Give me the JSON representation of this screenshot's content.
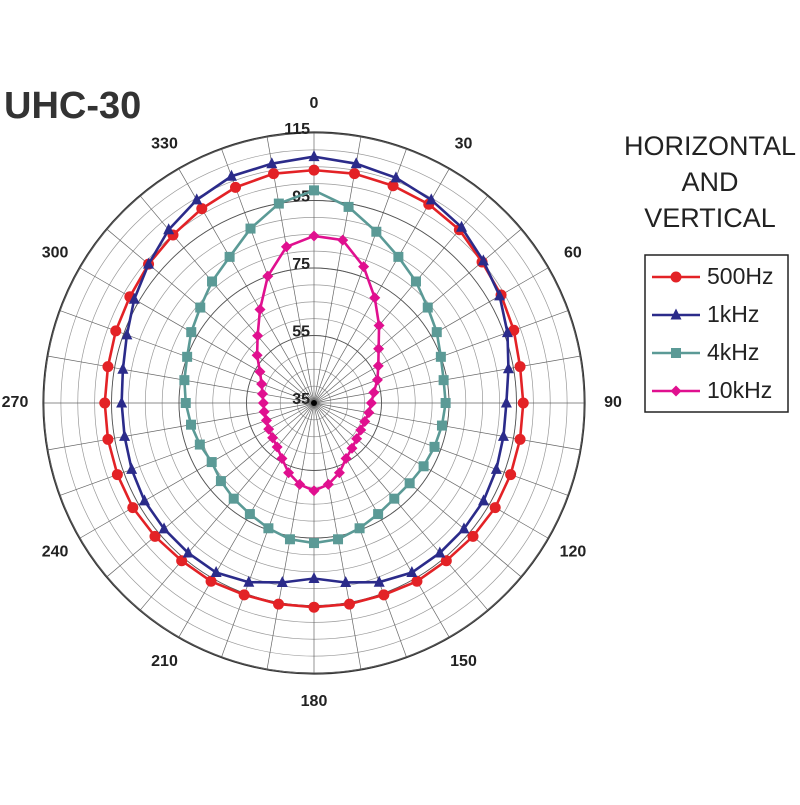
{
  "chart_data": {
    "type": "polar",
    "title": "UHC-30",
    "annotation": [
      "HORIZONTAL",
      "AND",
      "VERTICAL"
    ],
    "theta": [
      0,
      10,
      20,
      30,
      40,
      50,
      60,
      70,
      80,
      90,
      100,
      110,
      120,
      130,
      140,
      150,
      160,
      170,
      180,
      190,
      200,
      210,
      220,
      230,
      240,
      250,
      260,
      270,
      280,
      290,
      300,
      310,
      320,
      330,
      340,
      350
    ],
    "thetaticks": [
      0,
      30,
      60,
      90,
      120,
      150,
      180,
      210,
      240,
      270,
      300,
      330
    ],
    "rlim": [
      35,
      115
    ],
    "rticks": [
      35,
      55,
      75,
      95,
      115
    ],
    "rminor": 5,
    "grid": true,
    "series": [
      {
        "name": "500Hz",
        "color": "#e32226",
        "marker": "circle",
        "values": [
          104,
          104,
          103.5,
          103,
          102,
          100,
          99,
          98,
          97,
          97,
          97,
          97,
          97,
          96.5,
          96,
          96,
          95.5,
          95.5,
          95.5,
          95.5,
          95.5,
          96,
          96,
          96.5,
          97,
          97,
          97,
          97,
          97,
          97.5,
          98,
          99,
          100,
          101.5,
          103,
          104
        ]
      },
      {
        "name": "1kHz",
        "color": "#2b2b8a",
        "marker": "triangle",
        "values": [
          108,
          107,
          106,
          104.5,
          103,
          100.5,
          98.5,
          96,
          93.5,
          92,
          92,
          92.5,
          93,
          93,
          93,
          93,
          91.5,
          89,
          87,
          89,
          91.5,
          93,
          93,
          93,
          93,
          92.5,
          92,
          92,
          92.5,
          94,
          96.5,
          99,
          102,
          104.5,
          106.5,
          107
        ]
      },
      {
        "name": "4kHz",
        "color": "#5b9a96",
        "marker": "square",
        "values": [
          98,
          94,
          89,
          85,
          82,
          79,
          77,
          75,
          74,
          74,
          73.5,
          73,
          72.5,
          72,
          72,
          73,
          74.5,
          76,
          76.5,
          76,
          74.5,
          73,
          72,
          71,
          70,
          71,
          72,
          73,
          74,
          75,
          77,
          79,
          82,
          85,
          90,
          95
        ]
      },
      {
        "name": "10kHz",
        "color": "#e0108f",
        "marker": "diamond",
        "values": [
          84.5,
          84,
          78,
          71,
          65,
          60,
          57,
          55,
          53,
          52,
          51.5,
          51,
          51,
          51.5,
          52.5,
          54,
          57,
          59.5,
          61,
          59.5,
          57,
          54,
          52,
          51,
          50.5,
          50,
          50,
          50,
          50.5,
          51.5,
          53.5,
          57,
          61,
          67,
          75,
          82
        ]
      }
    ]
  }
}
